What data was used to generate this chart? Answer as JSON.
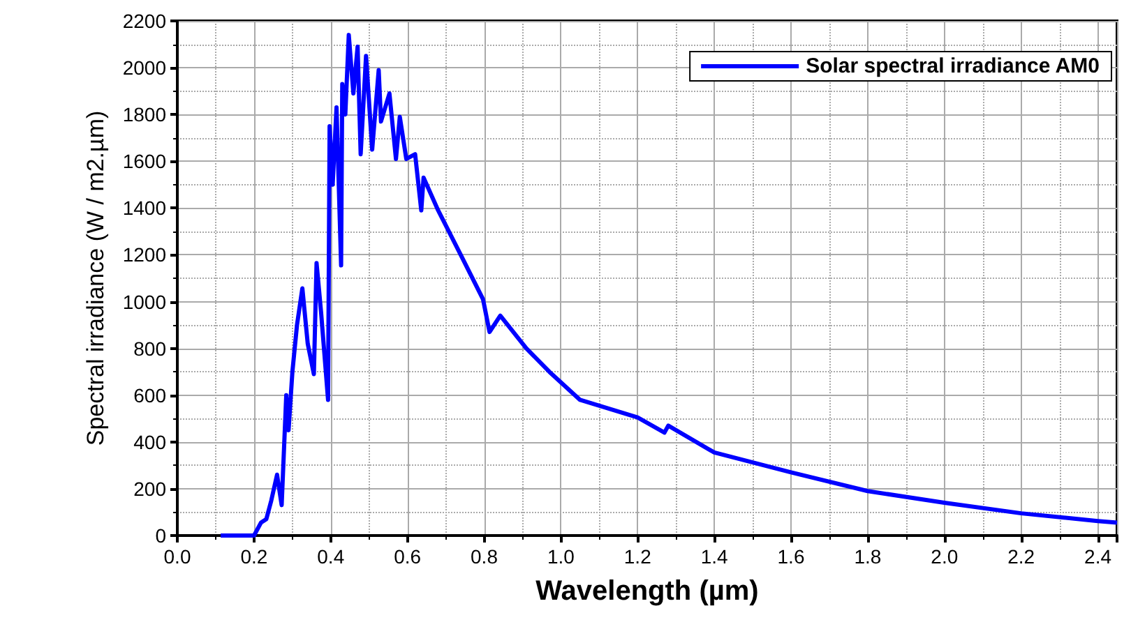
{
  "chart_data": {
    "type": "line",
    "xlabel": "Wavelength (µm)",
    "ylabel": "Spectral irradiance (W / m2.µm)",
    "x": [
      0.113,
      0.2,
      0.218,
      0.232,
      0.245,
      0.26,
      0.272,
      0.284,
      0.29,
      0.3,
      0.312,
      0.326,
      0.34,
      0.356,
      0.363,
      0.375,
      0.393,
      0.397,
      0.405,
      0.415,
      0.427,
      0.43,
      0.438,
      0.447,
      0.459,
      0.47,
      0.478,
      0.492,
      0.508,
      0.525,
      0.531,
      0.553,
      0.57,
      0.58,
      0.597,
      0.62,
      0.636,
      0.642,
      0.68,
      0.742,
      0.797,
      0.814,
      0.842,
      0.91,
      0.97,
      1.05,
      1.2,
      1.27,
      1.28,
      1.4,
      1.6,
      1.8,
      2.0,
      2.2,
      2.4,
      2.45
    ],
    "series": [
      {
        "name": "Solar spectral irradiance AM0",
        "color": "#0000ff",
        "values": [
          0,
          0,
          55,
          70,
          150,
          260,
          130,
          600,
          450,
          700,
          900,
          1057,
          820,
          690,
          1165,
          950,
          580,
          1750,
          1500,
          1830,
          1155,
          1930,
          1800,
          2140,
          1890,
          2090,
          1630,
          2050,
          1650,
          1990,
          1770,
          1890,
          1610,
          1790,
          1610,
          1630,
          1390,
          1530,
          1390,
          1190,
          1010,
          870,
          940,
          800,
          700,
          580,
          505,
          440,
          470,
          355,
          270,
          190,
          140,
          95,
          62,
          55
        ]
      }
    ],
    "xlim": [
      0,
      2.45
    ],
    "ylim": [
      0,
      2200
    ],
    "xticks": [
      {
        "value": 0,
        "label": "0.0"
      },
      {
        "value": 0.2,
        "label": "0.2"
      },
      {
        "value": 0.4,
        "label": "0.4"
      },
      {
        "value": 0.6,
        "label": "0.6"
      },
      {
        "value": 0.8,
        "label": "0.8"
      },
      {
        "value": 1,
        "label": "1.0"
      },
      {
        "value": 1.2,
        "label": "1.2"
      },
      {
        "value": 1.4,
        "label": "1.4"
      },
      {
        "value": 1.6,
        "label": "1.6"
      },
      {
        "value": 1.8,
        "label": "1.8"
      },
      {
        "value": 2,
        "label": "2.0"
      },
      {
        "value": 2.2,
        "label": "2.2"
      },
      {
        "value": 2.4,
        "label": "2.4"
      }
    ],
    "yticks": [
      0,
      200,
      400,
      600,
      800,
      1000,
      1200,
      1400,
      1600,
      1800,
      2000,
      2200
    ],
    "grid": true,
    "legend": "top right",
    "line_style": "solid",
    "marker": "none"
  }
}
